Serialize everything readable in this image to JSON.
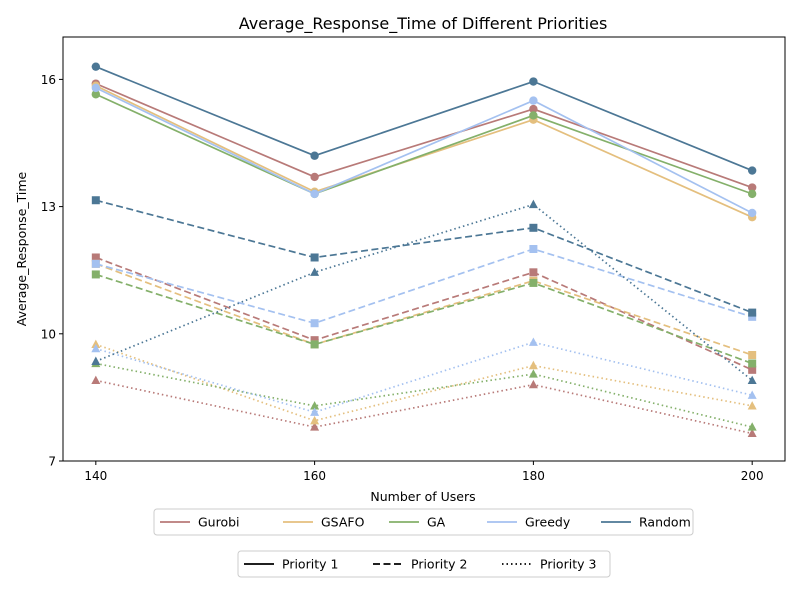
{
  "chart_data": {
    "type": "line",
    "title": "Average_Response_Time of Different Priorities",
    "xlabel": "Number of Users",
    "ylabel": "Average_Response_Time",
    "x": [
      140,
      160,
      180,
      200
    ],
    "xticks": [
      "140",
      "160",
      "180",
      "200"
    ],
    "yticks": [
      7,
      10,
      13,
      16
    ],
    "xlim": [
      137,
      203
    ],
    "ylim": [
      7,
      17
    ],
    "grid": false,
    "legend_methods": [
      "Gurobi",
      "GSAFO",
      "GA",
      "Greedy",
      "Random"
    ],
    "legend_priorities": [
      "Priority 1",
      "Priority 2",
      "Priority 3"
    ],
    "legend_placement": "bottom-center",
    "colors": {
      "Gurobi": "#b87a78",
      "GSAFO": "#e4bf7e",
      "GA": "#84b06a",
      "Greedy": "#a4c1f0",
      "Random": "#4c7795"
    },
    "series": [
      {
        "method": "Gurobi",
        "priority": "Priority 1",
        "values": [
          15.9,
          13.7,
          15.3,
          13.45
        ]
      },
      {
        "method": "GSAFO",
        "priority": "Priority 1",
        "values": [
          15.85,
          13.35,
          15.05,
          12.75
        ]
      },
      {
        "method": "GA",
        "priority": "Priority 1",
        "values": [
          15.65,
          13.3,
          15.15,
          13.3
        ]
      },
      {
        "method": "Greedy",
        "priority": "Priority 1",
        "values": [
          15.8,
          13.3,
          15.5,
          12.85
        ]
      },
      {
        "method": "Random",
        "priority": "Priority 1",
        "values": [
          16.3,
          14.2,
          15.95,
          13.85
        ]
      },
      {
        "method": "Gurobi",
        "priority": "Priority 2",
        "values": [
          11.8,
          9.85,
          11.45,
          9.15
        ]
      },
      {
        "method": "GSAFO",
        "priority": "Priority 2",
        "values": [
          11.65,
          9.75,
          11.25,
          9.5
        ]
      },
      {
        "method": "GA",
        "priority": "Priority 2",
        "values": [
          11.4,
          9.75,
          11.2,
          9.3
        ]
      },
      {
        "method": "Greedy",
        "priority": "Priority 2",
        "values": [
          11.65,
          10.25,
          12.0,
          10.4
        ]
      },
      {
        "method": "Random",
        "priority": "Priority 2",
        "values": [
          13.15,
          11.8,
          12.5,
          10.5
        ]
      },
      {
        "method": "Gurobi",
        "priority": "Priority 3",
        "values": [
          8.9,
          7.8,
          8.8,
          7.65
        ]
      },
      {
        "method": "GSAFO",
        "priority": "Priority 3",
        "values": [
          9.75,
          7.95,
          9.25,
          8.3
        ]
      },
      {
        "method": "GA",
        "priority": "Priority 3",
        "values": [
          9.3,
          8.3,
          9.05,
          7.8
        ]
      },
      {
        "method": "Greedy",
        "priority": "Priority 3",
        "values": [
          9.65,
          8.15,
          9.8,
          8.55
        ]
      },
      {
        "method": "Random",
        "priority": "Priority 3",
        "values": [
          9.35,
          11.45,
          13.05,
          8.9
        ]
      }
    ]
  }
}
